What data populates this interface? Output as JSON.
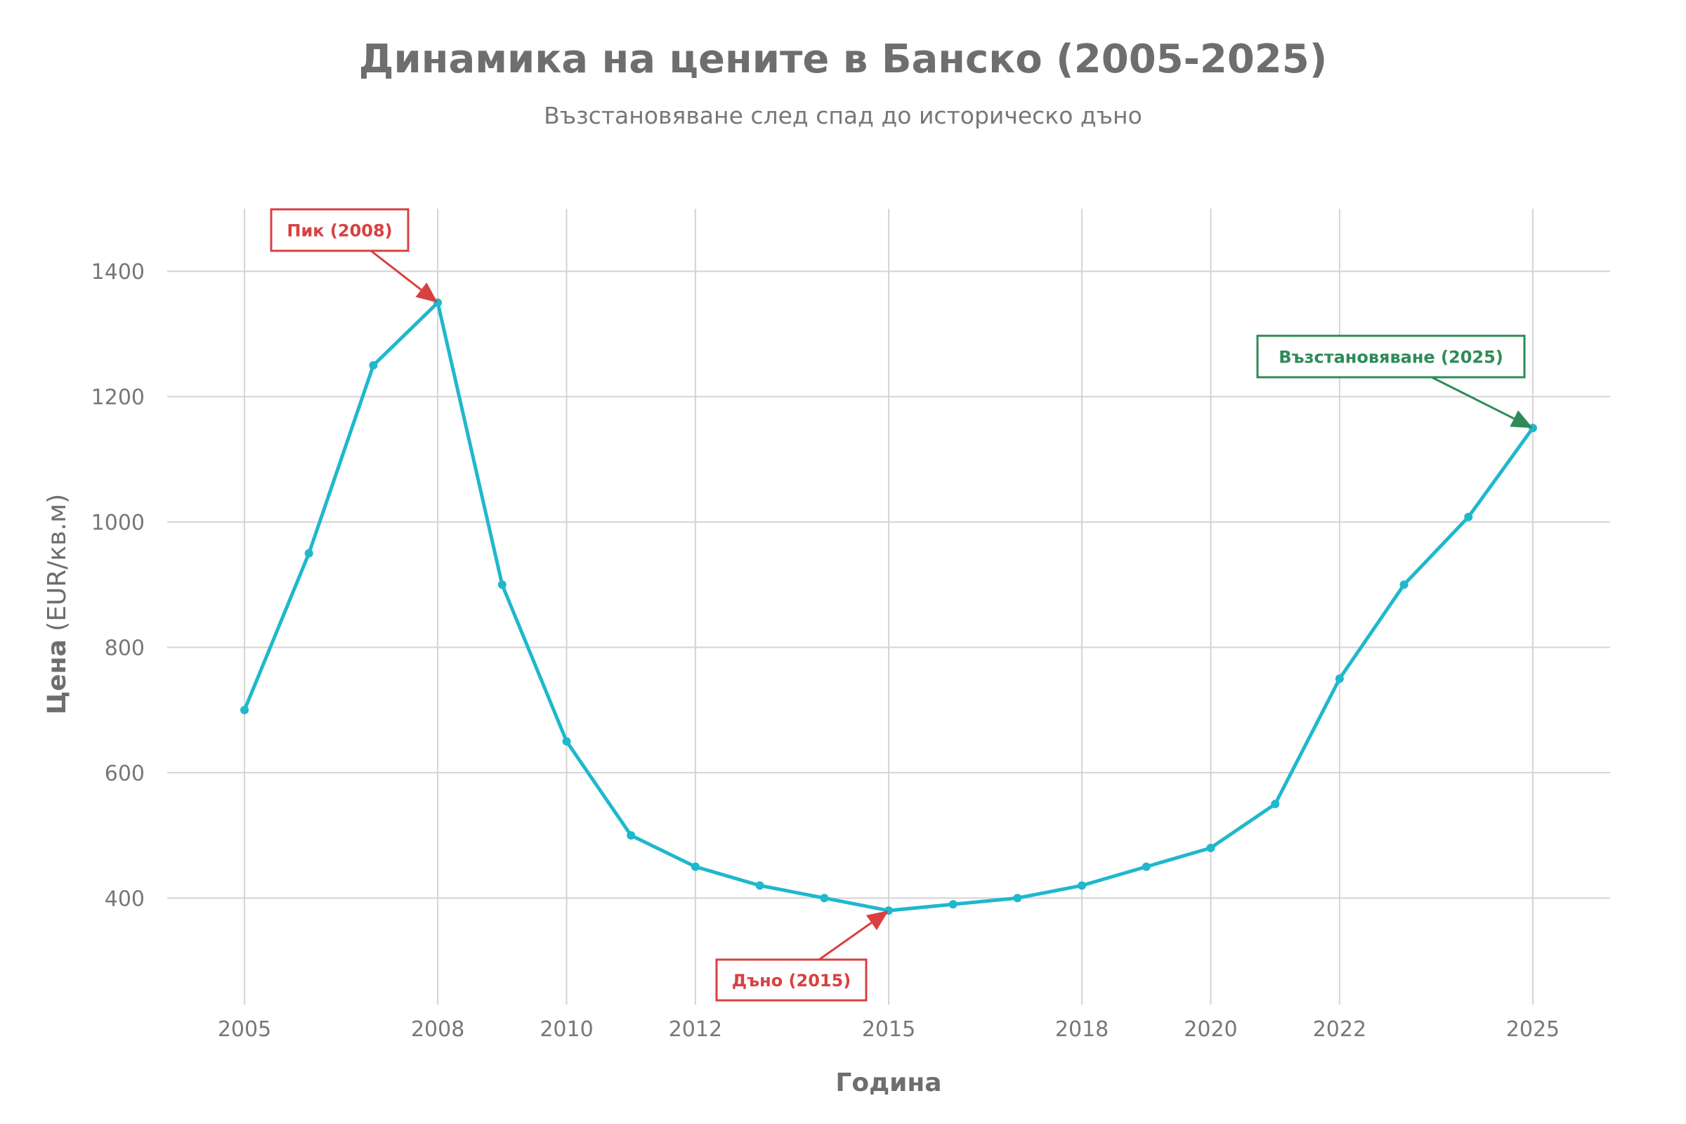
{
  "chart_data": {
    "type": "line",
    "title": "Динамика на цените в Банско (2005-2025)",
    "subtitle": "Възстановяване след спад до историческо дъно",
    "xlabel": "Година",
    "ylabel_bold": "Цена",
    "ylabel_unit": " (EUR/кв.м)",
    "x": [
      2005,
      2006,
      2007,
      2008,
      2009,
      2010,
      2011,
      2012,
      2013,
      2014,
      2015,
      2016,
      2017,
      2018,
      2019,
      2020,
      2021,
      2022,
      2023,
      2024,
      2025
    ],
    "y": [
      700,
      950,
      1250,
      1350,
      900,
      650,
      500,
      450,
      420,
      400,
      380,
      390,
      400,
      420,
      450,
      480,
      550,
      750,
      900,
      1008,
      1150
    ],
    "xlim": [
      2003.8,
      2026.2
    ],
    "ylim": [
      230,
      1500
    ],
    "xticks": [
      2005,
      2008,
      2010,
      2012,
      2015,
      2018,
      2020,
      2022,
      2025
    ],
    "yticks": [
      400,
      600,
      800,
      1000,
      1200,
      1400
    ],
    "grid": true,
    "line_color": "#1fb8cc",
    "annotations": [
      {
        "text": "Пик (2008)",
        "x": 2008,
        "y": 1350,
        "color": "#d94040"
      },
      {
        "text": "Дъно (2015)",
        "x": 2015,
        "y": 380,
        "color": "#d94040"
      },
      {
        "text": "Възстановяване (2025)",
        "x": 2025,
        "y": 1150,
        "color": "#2e8b57"
      }
    ]
  }
}
